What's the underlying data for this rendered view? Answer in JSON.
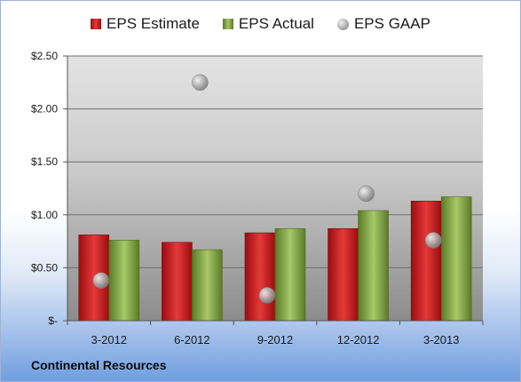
{
  "legend": {
    "estimate": "EPS Estimate",
    "actual": "EPS Actual",
    "gaap": "EPS GAAP"
  },
  "company": "Continental Resources",
  "colors": {
    "estimate": "#c0171a",
    "actual": "#7fa03f",
    "gaap": "#a0a0a0"
  },
  "chart_data": {
    "type": "bar",
    "categories": [
      "3-2012",
      "6-2012",
      "9-2012",
      "12-2012",
      "3-2013"
    ],
    "series": [
      {
        "name": "EPS Estimate",
        "values": [
          0.81,
          0.74,
          0.83,
          0.87,
          1.13
        ]
      },
      {
        "name": "EPS Actual",
        "values": [
          0.76,
          0.67,
          0.87,
          1.04,
          1.17
        ]
      },
      {
        "name": "EPS GAAP",
        "marker": "scatter",
        "values": [
          0.38,
          2.25,
          0.24,
          1.2,
          0.76
        ]
      }
    ],
    "yticks": [
      "$-",
      "$0.50",
      "$1.00",
      "$1.50",
      "$2.00",
      "$2.50"
    ],
    "ylim": [
      0,
      2.5
    ],
    "grid": true,
    "legend_position": "top"
  }
}
